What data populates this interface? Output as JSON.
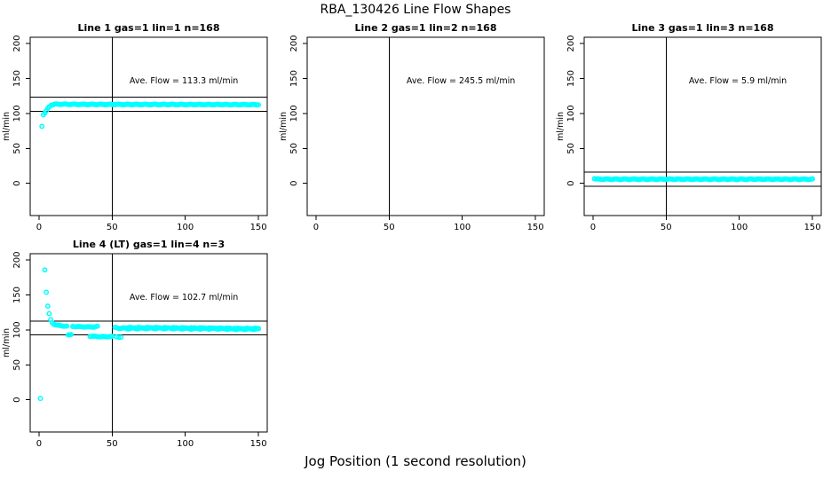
{
  "page": {
    "title": "RBA_130426  Line Flow Shapes",
    "xlabel": "Jog Position (1 second resolution)",
    "colors": {
      "background": "#ffffff",
      "axis": "#000000",
      "marker": "#00ffff"
    }
  },
  "chart_data": [
    {
      "type": "scatter",
      "title": "Line 1 gas=1 lin=1 n=168",
      "ylabel": "ml/min",
      "ave_flow": 113.3,
      "ave_flow_label": "Ave. Flow =  113.3  ml/min",
      "xlim": [
        -6,
        156
      ],
      "ylim": [
        -46,
        209
      ],
      "xticks": [
        0,
        50,
        100,
        150
      ],
      "yticks": [
        0,
        50,
        100,
        150,
        200
      ],
      "vline_x": 50,
      "hlines": [
        123.3,
        103.3
      ],
      "marker_color": "#00ffff",
      "series": [
        {
          "step": 1,
          "jitter": 0.4,
          "seed": 1,
          "anchors": [
            [
              2,
              82
            ],
            [
              3,
              98.5
            ],
            [
              4,
              100.5
            ],
            [
              5,
              103.5
            ],
            [
              6,
              107
            ],
            [
              7,
              109.5
            ],
            [
              8,
              111.5
            ],
            [
              9,
              112.5
            ],
            [
              11,
              113.3
            ],
            [
              30,
              113
            ],
            [
              150,
              112.6
            ]
          ]
        }
      ]
    },
    {
      "type": "scatter",
      "title": "Line 2 gas=1 lin=2 n=168",
      "ylabel": "ml/min",
      "ave_flow": 245.5,
      "ave_flow_label": "Ave. Flow =  245.5  ml/min",
      "xlim": [
        -6,
        156
      ],
      "ylim": [
        -46,
        209
      ],
      "xticks": [
        0,
        50,
        100,
        150
      ],
      "yticks": [
        0,
        50,
        100,
        150,
        200
      ],
      "vline_x": 50,
      "hlines": [],
      "marker_color": "#00ffff",
      "series": []
    },
    {
      "type": "scatter",
      "title": "Line 3 gas=1 lin=3 n=168",
      "ylabel": "ml/min",
      "ave_flow": 5.9,
      "ave_flow_label": "Ave. Flow =  5.9  ml/min",
      "xlim": [
        -6,
        156
      ],
      "ylim": [
        -46,
        209
      ],
      "xticks": [
        0,
        50,
        100,
        150
      ],
      "yticks": [
        0,
        50,
        100,
        150,
        200
      ],
      "vline_x": 50,
      "hlines": [
        15.9,
        -4.1
      ],
      "marker_color": "#00ffff",
      "series": [
        {
          "step": 1,
          "jitter": 0.45,
          "seed": 2,
          "anchors": [
            [
              1,
              7
            ],
            [
              2,
              6.2
            ],
            [
              4,
              6
            ],
            [
              150,
              6
            ]
          ]
        }
      ]
    },
    {
      "type": "scatter",
      "title": "Line 4 (LT) gas=1 lin=4 n=3",
      "ylabel": "ml/min",
      "ave_flow": 102.7,
      "ave_flow_label": "Ave. Flow =  102.7  ml/min",
      "xlim": [
        -6,
        156
      ],
      "ylim": [
        -46,
        209
      ],
      "xticks": [
        0,
        50,
        100,
        150
      ],
      "yticks": [
        0,
        50,
        100,
        150,
        200
      ],
      "vline_x": 50,
      "hlines": [
        112.7,
        92.7
      ],
      "marker_color": "#00ffff",
      "series": [
        {
          "step": 1,
          "jitter": 0,
          "seed": 0,
          "anchors": [
            [
              1,
              2
            ]
          ]
        },
        {
          "step": 1,
          "jitter": 0.3,
          "seed": 3,
          "anchors": [
            [
              4,
              186
            ],
            [
              5,
              154
            ],
            [
              6,
              134
            ],
            [
              7,
              123
            ],
            [
              8,
              114.5
            ],
            [
              9,
              110.5
            ],
            [
              10,
              108.5
            ],
            [
              11,
              107.5
            ],
            [
              12,
              107
            ],
            [
              14,
              106.2
            ],
            [
              16,
              105.7
            ],
            [
              19,
              105.2
            ]
          ]
        },
        {
          "step": 1,
          "jitter": 0.2,
          "seed": 4,
          "anchors": [
            [
              20,
              93
            ],
            [
              22,
              93.5
            ]
          ]
        },
        {
          "step": 1,
          "jitter": 0.35,
          "seed": 5,
          "anchors": [
            [
              23,
              105
            ],
            [
              30,
              104.4
            ],
            [
              38,
              104.2
            ],
            [
              40,
              105
            ]
          ]
        },
        {
          "step": 1,
          "jitter": 0.4,
          "seed": 6,
          "anchors": [
            [
              35,
              91
            ],
            [
              43,
              90.2
            ],
            [
              50,
              90.5
            ]
          ]
        },
        {
          "step": 1.5,
          "jitter": 0.3,
          "seed": 7,
          "anchors": [
            [
              53,
              89.8
            ],
            [
              57,
              89.6
            ]
          ]
        },
        {
          "step": 1,
          "jitter": 0.7,
          "seed": 8,
          "anchors": [
            [
              52,
              103
            ],
            [
              60,
              102
            ],
            [
              75,
              102.3
            ],
            [
              90,
              102.2
            ],
            [
              105,
              101.8
            ],
            [
              120,
              101.9
            ],
            [
              135,
              101.2
            ],
            [
              150,
              101.3
            ]
          ]
        },
        {
          "step": 2,
          "jitter": 0.5,
          "seed": 9,
          "anchors": [
            [
              58,
              103.2
            ],
            [
              80,
              103.3
            ],
            [
              100,
              103
            ],
            [
              120,
              102.5
            ],
            [
              140,
              102
            ],
            [
              150,
              102
            ]
          ]
        }
      ]
    }
  ]
}
